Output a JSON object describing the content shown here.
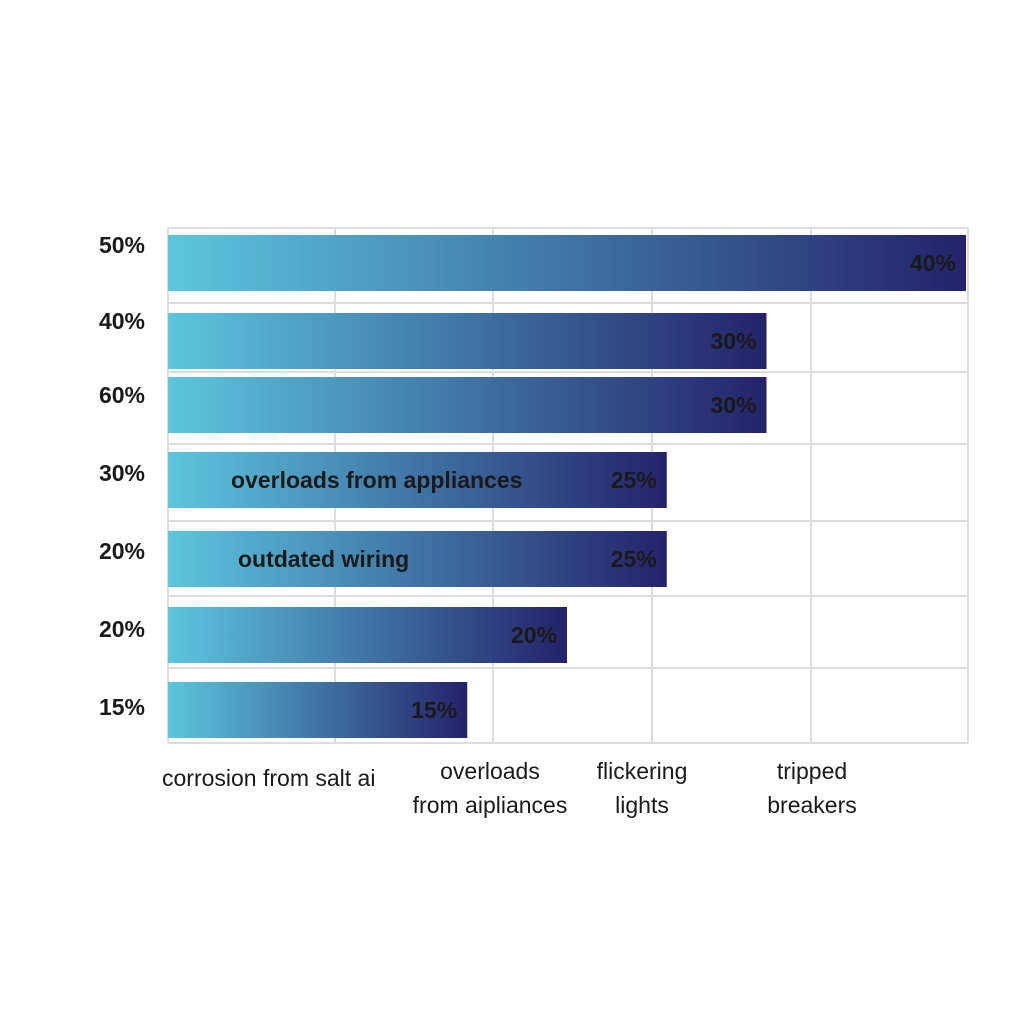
{
  "chart_data": {
    "type": "hbar",
    "categories": [
      "50%",
      "40%",
      "60%",
      "30%",
      "20%",
      "20%",
      "15%"
    ],
    "values": [
      40,
      30,
      30,
      25,
      25,
      20,
      15
    ],
    "value_labels": [
      "40%",
      "30%",
      "30%",
      "25%",
      "25%",
      "20%",
      "15%"
    ],
    "bar_texts": [
      null,
      null,
      null,
      "overloads from appliances",
      "outdated wiring",
      null,
      null
    ],
    "x_labels": [
      [
        "corrosion from salt ai"
      ],
      [
        "overloads",
        "from aipliances"
      ],
      [
        "flickering",
        "lights"
      ],
      [
        "tripped",
        "breakers"
      ]
    ],
    "xlim": [
      0,
      40
    ],
    "gradient": [
      "#5cc6de",
      "#24226a"
    ],
    "grid": true
  }
}
